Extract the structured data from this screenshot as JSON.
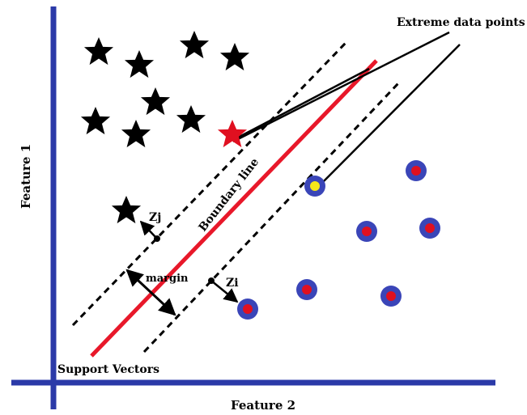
{
  "labels": {
    "extreme_data_points": "Extreme data points",
    "feature_1": "Feature 1",
    "feature_2": "Feature 2",
    "boundary_line": "Boundary line",
    "margin": "margin",
    "support_vectors": "Support Vectors",
    "zj": "Zj",
    "zi": "Zi"
  },
  "colors": {
    "axis": "#2b3aa8",
    "boundary": "#e8182a",
    "star_class": "#000000",
    "star_extreme": "#e01020",
    "circle_ring": "#3a45b8",
    "circle_core": "#e01020",
    "circle_extreme_core": "#f5e61a",
    "arrow": "#000000"
  },
  "icons": {
    "class_a_marker": "star-icon",
    "class_b_marker": "circle-dot-icon"
  }
}
